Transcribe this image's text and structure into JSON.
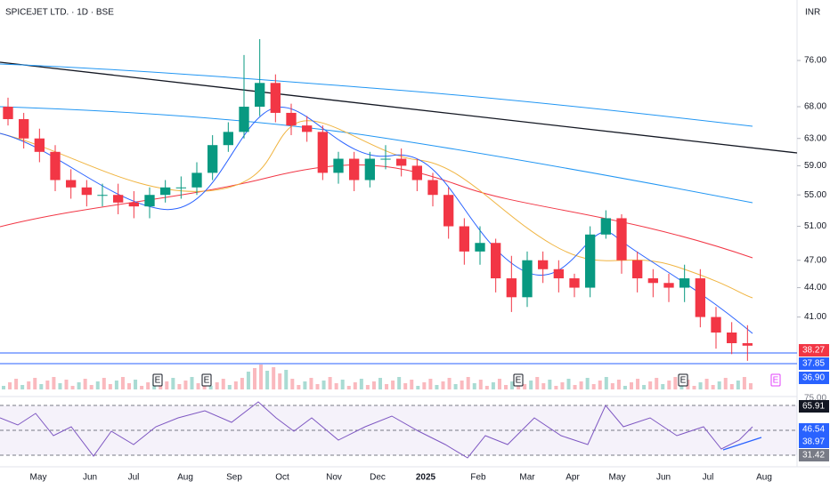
{
  "header": {
    "symbol": "SPICEJET LTD. · 1D · BSE",
    "currency": "INR"
  },
  "chart_data": {
    "type": "candlestick",
    "log_scale": true,
    "ylim": [
      34.3,
      87.9
    ],
    "yticks": [
      {
        "value": 76,
        "label": "76.00"
      },
      {
        "value": 68,
        "label": "68.00"
      },
      {
        "value": 63,
        "label": "63.00"
      },
      {
        "value": 59,
        "label": "59.00"
      },
      {
        "value": 55,
        "label": "55.00"
      },
      {
        "value": 51,
        "label": "51.00"
      },
      {
        "value": 47,
        "label": "47.00"
      },
      {
        "value": 44,
        "label": "44.00"
      },
      {
        "value": 41,
        "label": "41.00"
      }
    ],
    "up_color": "#089981",
    "down_color": "#f23645",
    "open": [
      68,
      66,
      63,
      61,
      57,
      56,
      55,
      55,
      54,
      53.5,
      55,
      56,
      56,
      58,
      62,
      64,
      68,
      72,
      67,
      65,
      64,
      58,
      60,
      57,
      60,
      60,
      59,
      57,
      55,
      51,
      48,
      49,
      45,
      43,
      47,
      46,
      45,
      44,
      50,
      52,
      47,
      45,
      44.5,
      44,
      45,
      41,
      39.5,
      38.5
    ],
    "high": [
      69.5,
      67,
      64.5,
      62,
      58.5,
      57,
      56.5,
      56.5,
      55.5,
      56,
      57,
      57.5,
      59.5,
      63.5,
      65.5,
      77,
      80,
      73.5,
      68.5,
      66.5,
      65,
      61,
      61,
      61,
      62,
      61.5,
      60,
      58,
      56,
      52,
      51,
      49.5,
      47.5,
      48,
      48,
      47,
      45.5,
      51,
      53,
      52.5,
      48,
      46,
      45.5,
      46.5,
      46,
      42,
      40.5,
      40.2
    ],
    "low": [
      65,
      61.5,
      59.5,
      55.5,
      54.5,
      53.5,
      53.5,
      52.5,
      52,
      52,
      54,
      54.5,
      55,
      57,
      61,
      63,
      66.5,
      65.5,
      63.5,
      62.5,
      57,
      56.5,
      55.5,
      56,
      58.5,
      57.5,
      55.5,
      53.5,
      49.5,
      46.5,
      46.5,
      43.5,
      41.5,
      42,
      44.5,
      43.5,
      43,
      43,
      49.5,
      45.5,
      43.5,
      43,
      42.5,
      42.5,
      40,
      38,
      37.5,
      36.9
    ],
    "close": [
      66,
      63,
      61,
      57,
      56,
      55,
      55,
      54,
      53.5,
      55,
      56,
      56,
      58,
      62,
      64,
      68,
      72,
      67,
      65,
      64,
      58,
      60,
      57,
      60,
      60,
      59,
      57,
      55,
      51,
      48,
      49,
      45,
      43,
      47,
      46,
      45,
      44,
      50,
      52,
      47,
      45,
      44.5,
      44,
      45,
      41,
      39.5,
      38.5,
      38.27
    ],
    "time_labels": [
      "May",
      "Jun",
      "Jul",
      "Aug",
      "Sep",
      "Oct",
      "Nov",
      "Dec",
      "2025",
      "Feb",
      "Mar",
      "Apr",
      "May",
      "Jun",
      "Jul",
      "Aug"
    ],
    "price_tags": [
      {
        "value": 38.27,
        "label": "38.27",
        "color": "#f23645"
      },
      {
        "value": 37.85,
        "label": "37.85",
        "color": "#2962ff"
      },
      {
        "value": 36.9,
        "label": "36.90",
        "color": "#2962ff"
      }
    ],
    "volume_tag": {
      "value": 75,
      "label": "75.00"
    },
    "earnings_markers": [
      "E",
      "E",
      "E",
      "E",
      "E"
    ],
    "rsi_tags": [
      {
        "value": 65.91,
        "label": "65.91",
        "color": "#131722"
      },
      {
        "value": 46.54,
        "label": "46.54",
        "color": "#2962ff"
      },
      {
        "value": 38.97,
        "label": "38.97",
        "color": "#2962ff"
      },
      {
        "value": 31.42,
        "label": "31.42",
        "color": "#787b86"
      }
    ]
  }
}
